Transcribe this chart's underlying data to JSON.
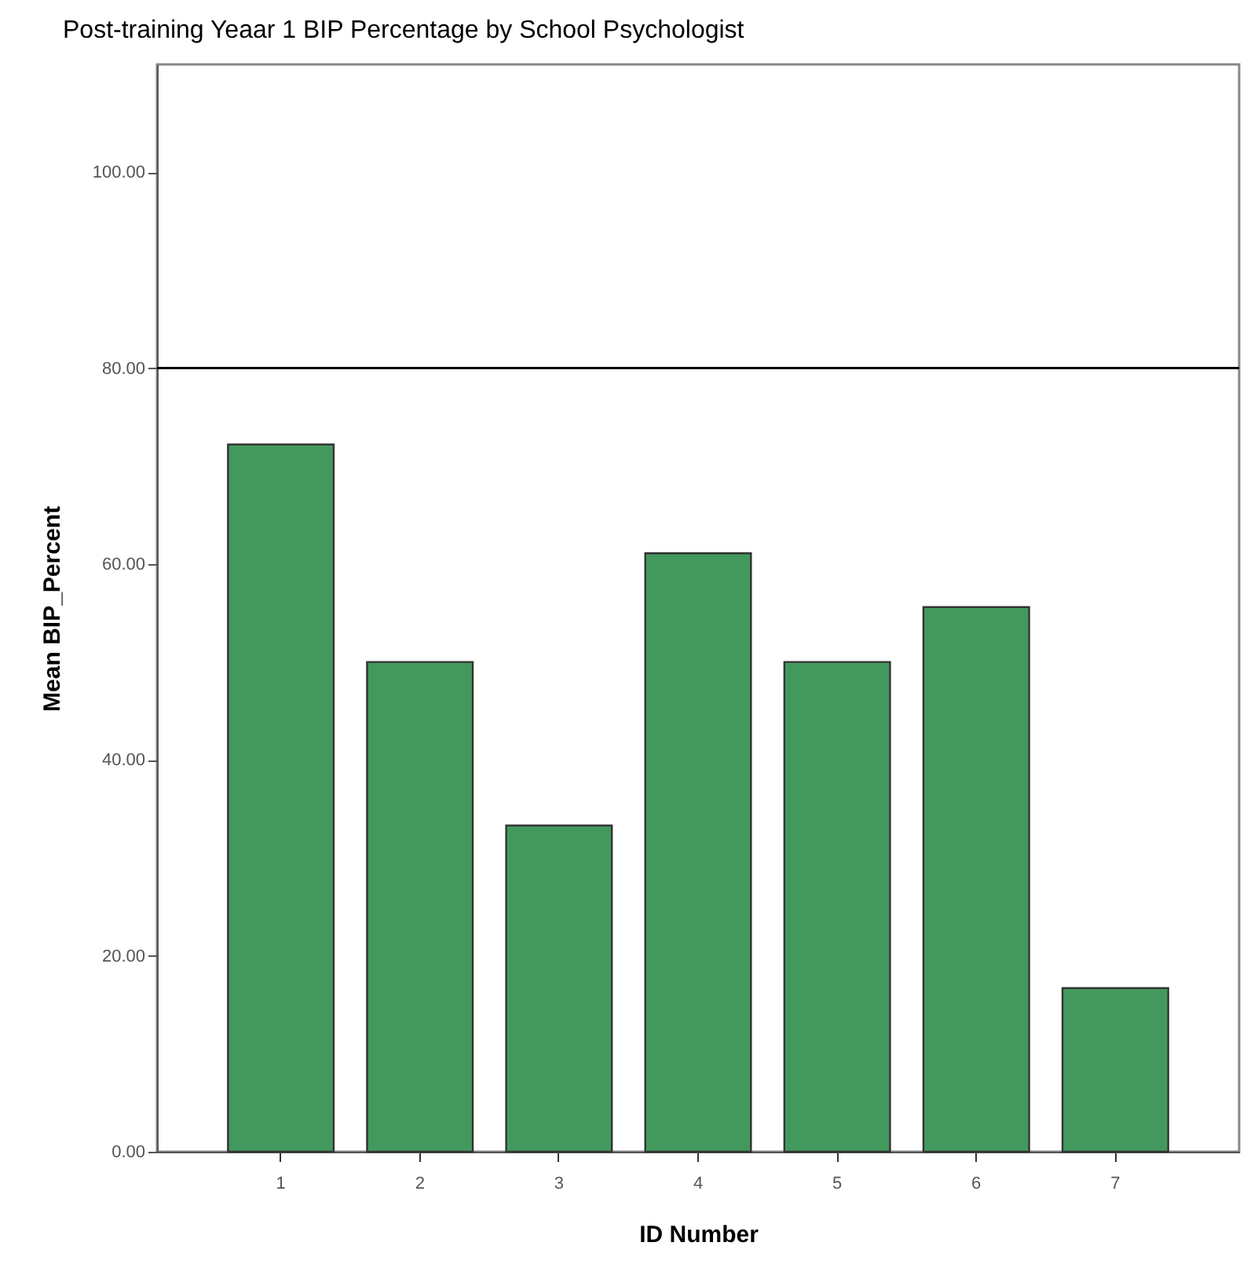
{
  "chart_data": {
    "type": "bar",
    "title": "Post-training Yeaar 1 BIP Percentage by School Psychologist",
    "xlabel": "ID Number",
    "ylabel": "Mean BIP_Percent",
    "categories": [
      "1",
      "2",
      "3",
      "4",
      "5",
      "6",
      "7"
    ],
    "values": [
      72.2,
      50,
      33.3,
      61.1,
      50,
      55.6,
      16.7
    ],
    "color": "#43995d",
    "ylim": [
      0,
      111
    ],
    "yticks": [
      {
        "value": 0,
        "label": "0.00"
      },
      {
        "value": 20,
        "label": "20.00"
      },
      {
        "value": 40,
        "label": "40.00"
      },
      {
        "value": 60,
        "label": "60.00"
      },
      {
        "value": 80,
        "label": "80.00"
      },
      {
        "value": 100,
        "label": "100.00"
      }
    ],
    "ref_lines": [
      {
        "axis": "y",
        "value": 80,
        "color": "#000000"
      }
    ],
    "grid": false
  }
}
